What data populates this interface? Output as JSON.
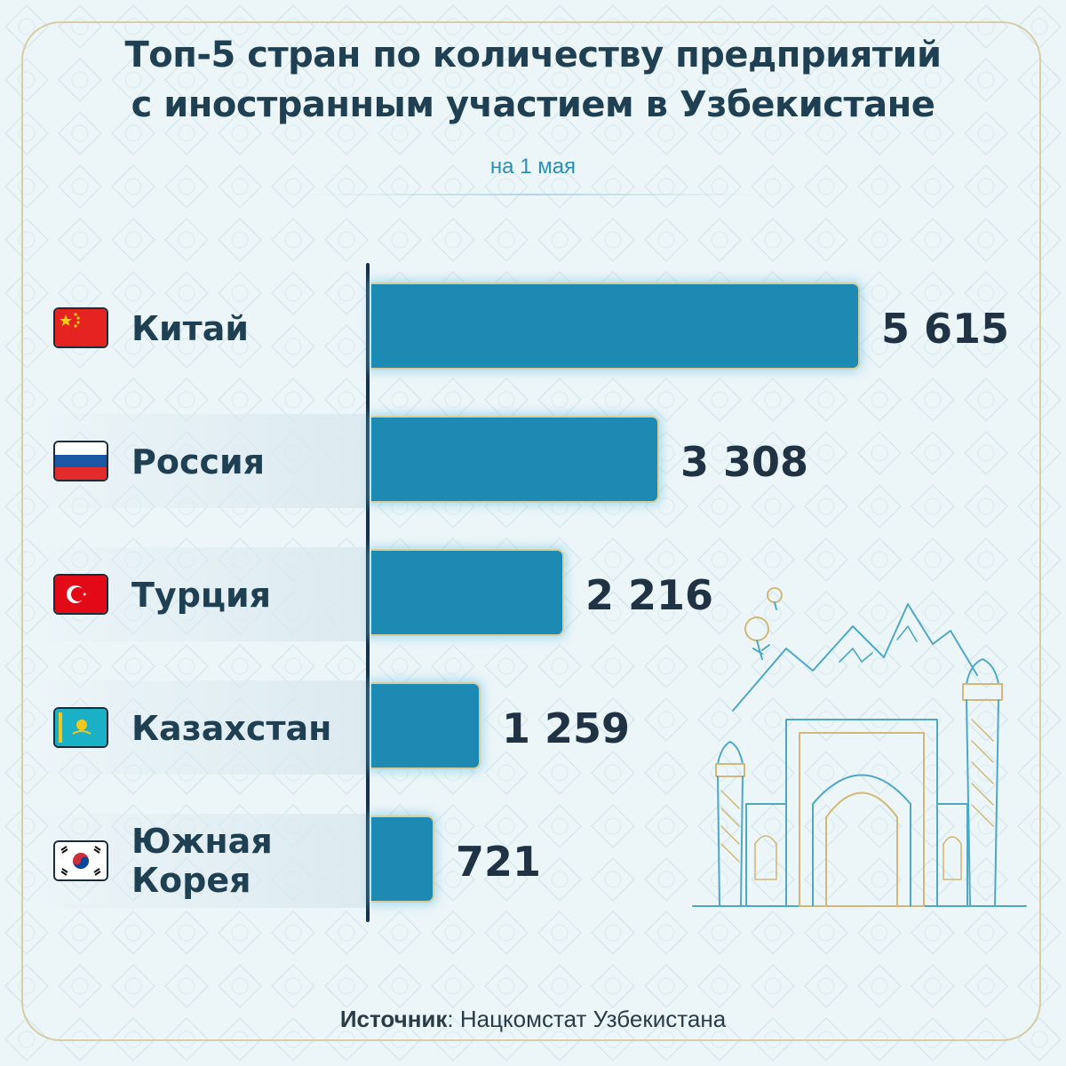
{
  "header": {
    "title_line1": "Топ-5 стран по количеству предприятий",
    "title_line2": "с иностранным участием в Узбекистане",
    "subtitle": "на 1 мая"
  },
  "chart_data": {
    "type": "bar",
    "orientation": "horizontal",
    "categories": [
      "Китай",
      "Россия",
      "Турция",
      "Казахстан",
      "Южная Корея"
    ],
    "values": [
      5615,
      3308,
      2216,
      1259,
      721
    ],
    "value_labels": [
      "5 615",
      "3 308",
      "2 216",
      "1 259",
      "721"
    ],
    "bar_color": "#1c8ab3"
  },
  "rows": [
    {
      "label_lines": [
        "Китай"
      ],
      "value_label": "5 615",
      "flag": "china-flag-icon"
    },
    {
      "label_lines": [
        "Россия"
      ],
      "value_label": "3 308",
      "flag": "russia-flag-icon"
    },
    {
      "label_lines": [
        "Турция"
      ],
      "value_label": "2 216",
      "flag": "turkey-flag-icon"
    },
    {
      "label_lines": [
        "Казахстан"
      ],
      "value_label": "1 259",
      "flag": "kazakhstan-flag-icon"
    },
    {
      "label_lines": [
        "Южная",
        "Корея"
      ],
      "value_label": "721",
      "flag": "south-korea-flag-icon"
    }
  ],
  "source": {
    "label": "Источник",
    "text": "Нацкомстат Узбекистана"
  },
  "colors": {
    "title": "#1f3f52",
    "subtitle": "#2b8fb5",
    "bar": "#1c8ab3",
    "frame": "#d8cda4"
  }
}
